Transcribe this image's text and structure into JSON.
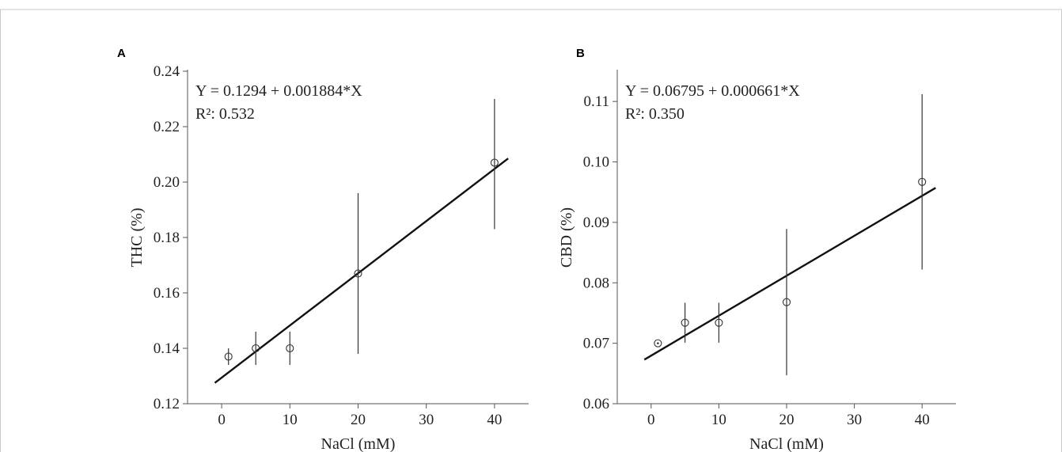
{
  "chart_data": [
    {
      "type": "scatter",
      "panel_label": "A",
      "xlabel": "NaCl (mM)",
      "ylabel": "THC (%)",
      "xlim": [
        -5,
        45
      ],
      "ylim": [
        0.12,
        0.24
      ],
      "x_ticks": [
        0,
        10,
        20,
        30,
        40
      ],
      "y_ticks": [
        0.12,
        0.14,
        0.16,
        0.18,
        0.2,
        0.22,
        0.24
      ],
      "y_decimals": 2,
      "grid": false,
      "points": [
        {
          "x": 1,
          "y": 0.137,
          "err_low": 0.134,
          "err_high": 0.14
        },
        {
          "x": 5,
          "y": 0.14,
          "err_low": 0.134,
          "err_high": 0.146
        },
        {
          "x": 10,
          "y": 0.14,
          "err_low": 0.134,
          "err_high": 0.146
        },
        {
          "x": 20,
          "y": 0.167,
          "err_low": 0.138,
          "err_high": 0.196
        },
        {
          "x": 40,
          "y": 0.207,
          "err_low": 0.183,
          "err_high": 0.23
        }
      ],
      "fit": {
        "intercept": 0.1294,
        "slope": 0.001884,
        "x_range": [
          -1,
          42
        ]
      },
      "equation": "Y = 0.1294 + 0.001884*X",
      "r_squared": "R²: 0.532"
    },
    {
      "type": "scatter",
      "panel_label": "B",
      "xlabel": "NaCl (mM)",
      "ylabel": "CBD (%)",
      "xlim": [
        -5,
        45
      ],
      "ylim": [
        0.06,
        0.115
      ],
      "x_ticks": [
        0,
        10,
        20,
        30,
        40
      ],
      "y_ticks": [
        0.06,
        0.07,
        0.08,
        0.09,
        0.1,
        0.11
      ],
      "y_decimals": 2,
      "grid": false,
      "points": [
        {
          "x": 1,
          "y": 0.07,
          "err_low": 0.07,
          "err_high": 0.07
        },
        {
          "x": 5,
          "y": 0.0734,
          "err_low": 0.0701,
          "err_high": 0.0767
        },
        {
          "x": 10,
          "y": 0.0734,
          "err_low": 0.0701,
          "err_high": 0.0767
        },
        {
          "x": 20,
          "y": 0.0768,
          "err_low": 0.0647,
          "err_high": 0.0889
        },
        {
          "x": 40,
          "y": 0.0967,
          "err_low": 0.0822,
          "err_high": 0.1112
        }
      ],
      "fit": {
        "intercept": 0.06795,
        "slope": 0.000661,
        "x_range": [
          -1,
          42
        ]
      },
      "equation": "Y = 0.06795 + 0.000661*X",
      "r_squared": "R²: 0.350"
    }
  ]
}
